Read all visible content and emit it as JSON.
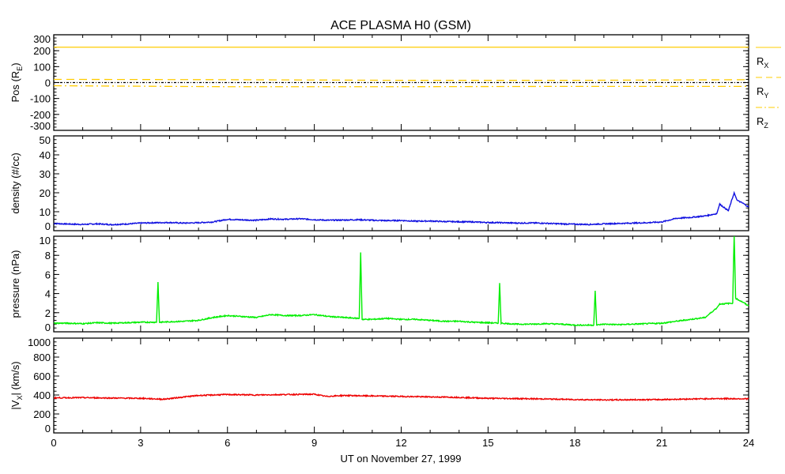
{
  "title": "ACE PLASMA H0 (GSM)",
  "xlabel": "UT on November 27, 1999",
  "chart_data": [
    {
      "type": "line",
      "name": "position",
      "ylabel": "Pos (R",
      "ylabel_sub": "E",
      "ylabel_end": ")",
      "ylim": [
        -300,
        300
      ],
      "yticks": [
        300,
        200,
        100,
        0,
        -100,
        -200,
        -300
      ],
      "xlim": [
        0,
        24
      ],
      "series": [
        {
          "name": "R",
          "sub": "X",
          "style": "solid",
          "color": "#ffcc00",
          "x": [
            0,
            24
          ],
          "values": [
            222,
            222
          ]
        },
        {
          "name": "R",
          "sub": "Y",
          "style": "dashed",
          "color": "#ffcc00",
          "x": [
            0,
            6,
            12,
            18,
            24
          ],
          "values": [
            20,
            18,
            14,
            14,
            18
          ]
        },
        {
          "name": "R",
          "sub": "Z",
          "style": "dashdot",
          "color": "#ffcc00",
          "x": [
            0,
            6,
            12,
            18,
            24
          ],
          "values": [
            -20,
            -26,
            -26,
            -24,
            -24
          ]
        },
        {
          "name": "zero",
          "style": "dotted",
          "color": "#000000",
          "x": [
            0,
            24
          ],
          "values": [
            0,
            0
          ]
        }
      ]
    },
    {
      "type": "line",
      "name": "density",
      "ylabel": "density (#/cc)",
      "ylim": [
        0,
        50
      ],
      "yticks": [
        50,
        40,
        30,
        20,
        10,
        0
      ],
      "xlim": [
        0,
        24
      ],
      "color": "#1010e0",
      "x": [
        0,
        0.5,
        1,
        1.5,
        2,
        2.5,
        3,
        3.5,
        4,
        4.5,
        5,
        5.5,
        6,
        6.5,
        7,
        7.5,
        8,
        8.5,
        9,
        9.5,
        10,
        10.5,
        11,
        11.5,
        12,
        12.5,
        13,
        13.5,
        14,
        14.5,
        15,
        15.5,
        16,
        16.5,
        17,
        17.5,
        18,
        18.5,
        19,
        19.5,
        20,
        20.5,
        21,
        21.5,
        22,
        22.5,
        22.9,
        23,
        23.3,
        23.5,
        23.6,
        23.8,
        24
      ],
      "values": [
        3.8,
        3.5,
        3.3,
        3.6,
        3.2,
        3.5,
        4,
        4.2,
        4.3,
        4,
        4.2,
        4.6,
        6,
        5.7,
        5.5,
        6.2,
        6,
        6.3,
        5.8,
        5.5,
        5.6,
        5.8,
        5.5,
        5.3,
        5.4,
        5,
        5.1,
        4.8,
        4.7,
        4.6,
        4.3,
        4.2,
        4,
        4.1,
        3.9,
        3.6,
        3.4,
        3.3,
        3.6,
        3.8,
        4,
        4.2,
        4.6,
        6.5,
        7,
        7.8,
        9,
        14,
        10.5,
        20,
        16,
        14.5,
        12.5
      ]
    },
    {
      "type": "line",
      "name": "pressure",
      "ylabel": "pressure (nPa)",
      "ylim": [
        0,
        10
      ],
      "yticks": [
        10,
        8,
        6,
        4,
        2,
        0
      ],
      "xlim": [
        0,
        24
      ],
      "color": "#00ee00",
      "x": [
        0,
        0.5,
        1,
        1.5,
        2,
        2.5,
        3,
        3.55,
        3.6,
        3.65,
        4,
        4.5,
        5,
        5.5,
        6,
        6.5,
        7,
        7.5,
        8,
        8.5,
        9,
        9.5,
        10,
        10.55,
        10.6,
        10.65,
        11,
        11.5,
        12,
        12.5,
        13,
        13.5,
        14,
        14.5,
        15,
        15.35,
        15.4,
        15.45,
        16,
        16.5,
        17,
        17.5,
        18,
        18.65,
        18.7,
        18.75,
        19,
        19.5,
        20,
        20.5,
        21,
        21.5,
        22,
        22.5,
        22.9,
        23,
        23.45,
        23.5,
        23.55,
        23.8,
        24
      ],
      "values": [
        0.9,
        0.9,
        0.85,
        0.95,
        0.9,
        0.95,
        1.0,
        1.0,
        5.2,
        1.0,
        1.05,
        1.1,
        1.2,
        1.5,
        1.7,
        1.6,
        1.5,
        1.8,
        1.7,
        1.7,
        1.8,
        1.6,
        1.5,
        1.4,
        8.3,
        1.3,
        1.3,
        1.4,
        1.3,
        1.3,
        1.2,
        1.1,
        1.1,
        1.0,
        0.95,
        0.9,
        5.1,
        0.9,
        0.8,
        0.8,
        0.85,
        0.8,
        0.7,
        0.7,
        4.3,
        0.7,
        0.8,
        0.75,
        0.8,
        0.85,
        0.9,
        1.1,
        1.3,
        1.5,
        2.5,
        2.9,
        3.0,
        10.5,
        3.5,
        3.1,
        2.7
      ]
    },
    {
      "type": "line",
      "name": "vx",
      "ylabel": "|V",
      "ylabel_sub": "X",
      "ylabel_end": "| (km/s)",
      "ylim": [
        0,
        1000
      ],
      "yticks": [
        1000,
        800,
        600,
        400,
        200,
        0
      ],
      "xlim": [
        0,
        24
      ],
      "xticks": [
        0,
        3,
        6,
        9,
        12,
        15,
        18,
        21,
        24
      ],
      "color": "#ee0000",
      "x": [
        0,
        1,
        2,
        3,
        3.8,
        4.5,
        5,
        6,
        7,
        8,
        9,
        9.4,
        10,
        11,
        12,
        13,
        14,
        15,
        16,
        17,
        18,
        19,
        20,
        21,
        22,
        23,
        24
      ],
      "values": [
        370,
        372,
        368,
        365,
        355,
        380,
        395,
        405,
        400,
        405,
        408,
        385,
        395,
        390,
        385,
        380,
        375,
        365,
        362,
        358,
        352,
        348,
        350,
        352,
        358,
        362,
        360
      ]
    }
  ],
  "legend": [
    "R",
    "X",
    "R",
    "Y",
    "R",
    "Z"
  ]
}
